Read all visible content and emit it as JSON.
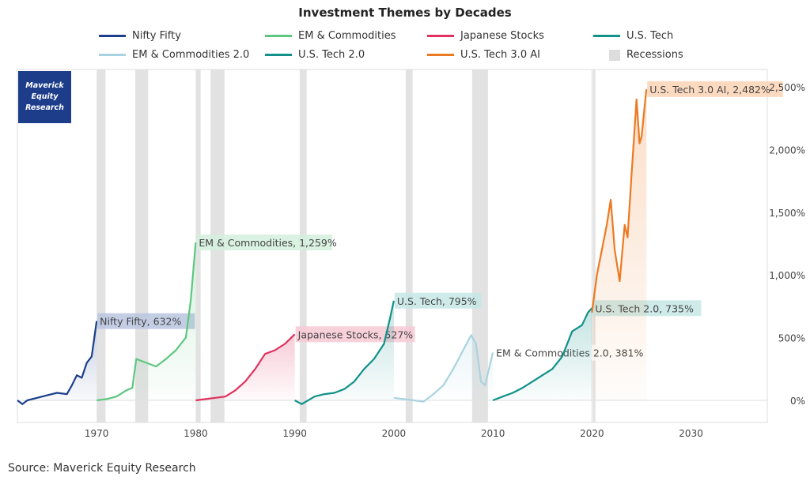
{
  "chart_data": {
    "type": "line",
    "title": "Investment Themes by Decades",
    "source": "Source: Maverick Equity Research",
    "logo": "Maverick Equity Research",
    "xlim": [
      1962,
      2037.7
    ],
    "ylim": [
      -180,
      2650
    ],
    "x_ticks": [
      1970,
      1980,
      1990,
      2000,
      2010,
      2020,
      2030
    ],
    "y_ticks": [
      {
        "v": 0,
        "label": "0%"
      },
      {
        "v": 500,
        "label": "500%"
      },
      {
        "v": 1000,
        "label": "1,000%"
      },
      {
        "v": 1500,
        "label": "1,500%"
      },
      {
        "v": 2000,
        "label": "2,000%"
      },
      {
        "v": 2500,
        "label": "2,500%"
      }
    ],
    "recessions": [
      [
        1970,
        1970.9
      ],
      [
        1973.9,
        1975.2
      ],
      [
        1980,
        1980.5
      ],
      [
        1981.5,
        1982.9
      ],
      [
        1990.5,
        1991.2
      ],
      [
        2001.2,
        2001.9
      ],
      [
        2007.9,
        2009.5
      ],
      [
        2020.1,
        2020.35
      ]
    ],
    "legend": [
      {
        "name": "Nifty Fifty",
        "color": "#1b3f8b"
      },
      {
        "name": "EM & Commodities",
        "color": "#5dc77f"
      },
      {
        "name": "Japanese Stocks",
        "color": "#e0315e"
      },
      {
        "name": "U.S. Tech",
        "color": "#11918a"
      },
      {
        "name": "EM & Commodities 2.0",
        "color": "#a9d3e0"
      },
      {
        "name": "U.S. Tech 2.0",
        "color": "#11918a"
      },
      {
        "name": "U.S. Tech 3.0 AI",
        "color": "#ec7a22"
      },
      {
        "name": "Recessions",
        "color": "#dddddd",
        "box": true
      }
    ],
    "series": [
      {
        "name": "Nifty Fifty",
        "color": "#1b3f8b",
        "label": "Nifty Fifty, 632%",
        "labelbg": "#b9c5e0",
        "x": [
          1962,
          1962.5,
          1963,
          1964,
          1965,
          1966,
          1967,
          1967.5,
          1968,
          1968.5,
          1969,
          1969.5,
          1970
        ],
        "y": [
          0,
          -30,
          0,
          20,
          40,
          60,
          50,
          120,
          200,
          180,
          300,
          350,
          632
        ]
      },
      {
        "name": "EM & Commodities",
        "color": "#5dc77f",
        "label": "EM & Commodities, 1,259%",
        "labelbg": "#d4f0dc",
        "x": [
          1970,
          1971,
          1972,
          1973,
          1973.6,
          1974,
          1975,
          1976,
          1977,
          1978,
          1979,
          1979.5,
          1980
        ],
        "y": [
          0,
          10,
          30,
          80,
          100,
          330,
          300,
          270,
          330,
          400,
          500,
          800,
          1259
        ]
      },
      {
        "name": "Japanese Stocks",
        "color": "#e0315e",
        "label": "Japanese Stocks, 527%",
        "labelbg": "#f8c9d5",
        "x": [
          1980,
          1981,
          1982,
          1983,
          1984,
          1985,
          1986,
          1987,
          1988,
          1989,
          1990
        ],
        "y": [
          0,
          10,
          20,
          30,
          80,
          150,
          250,
          370,
          400,
          450,
          527
        ]
      },
      {
        "name": "U.S. Tech",
        "color": "#11918a",
        "label": "U.S. Tech, 795%",
        "labelbg": "#c6e8e6",
        "x": [
          1990,
          1990.7,
          1992,
          1993,
          1994,
          1995,
          1996,
          1997,
          1998,
          1999,
          1999.6,
          2000
        ],
        "y": [
          0,
          -30,
          30,
          50,
          60,
          90,
          150,
          250,
          330,
          450,
          650,
          795
        ]
      },
      {
        "name": "EM & Commodities 2.0",
        "color": "#a9d3e0",
        "label": "EM & Commodities 2.0, 381%",
        "labelbg": "#ffffff",
        "x": [
          2000,
          2001,
          2002,
          2003,
          2004,
          2005,
          2006,
          2007,
          2007.8,
          2008.3,
          2008.8,
          2009.2,
          2009.6,
          2010
        ],
        "y": [
          20,
          10,
          0,
          -10,
          50,
          120,
          250,
          400,
          520,
          450,
          150,
          120,
          250,
          381
        ]
      },
      {
        "name": "U.S. Tech 2.0",
        "color": "#11918a",
        "label": "U.S. Tech 2.0, 735%",
        "labelbg": "#c6e8e6",
        "x": [
          2010,
          2011,
          2012,
          2013,
          2014,
          2015,
          2016,
          2017,
          2018,
          2019,
          2019.6,
          2020
        ],
        "y": [
          0,
          30,
          60,
          100,
          150,
          200,
          250,
          350,
          550,
          600,
          700,
          735
        ]
      },
      {
        "name": "U.S. Tech 3.0 AI",
        "color": "#ec7a22",
        "label": "U.S. Tech 3.0 AI, 2,482%",
        "labelbg": "#fbd3b5",
        "x": [
          2020,
          2020.5,
          2021,
          2021.5,
          2021.9,
          2022.3,
          2022.8,
          2023.3,
          2023.6,
          2024,
          2024.5,
          2024.8,
          2025,
          2025.5
        ],
        "y": [
          700,
          1000,
          1200,
          1400,
          1600,
          1200,
          950,
          1400,
          1300,
          1800,
          2400,
          2050,
          2100,
          2482
        ]
      }
    ]
  }
}
